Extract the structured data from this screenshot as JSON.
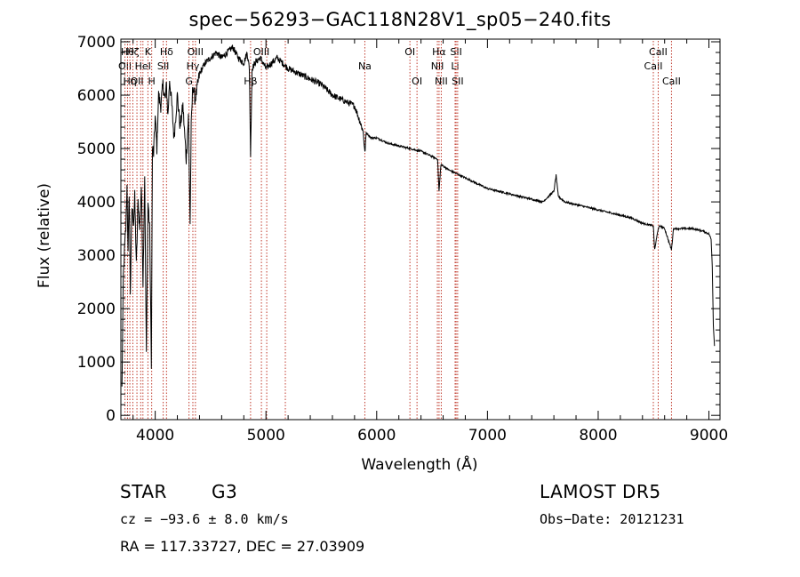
{
  "chart_data": {
    "type": "line",
    "title": "spec−56293−GAC118N28V1_sp05−240.fits",
    "xlabel": "Wavelength (Å)",
    "ylabel": "Flux (relative)",
    "xlim": [
      3690,
      9100
    ],
    "ylim": [
      -80,
      7050
    ],
    "xticks": [
      4000,
      5000,
      6000,
      7000,
      8000,
      9000
    ],
    "yticks": [
      0,
      1000,
      2000,
      3000,
      4000,
      5000,
      6000,
      7000
    ],
    "series": [
      {
        "x": [
          3700,
          3712,
          3725,
          3735,
          3745,
          3755,
          3765,
          3775,
          3790,
          3805,
          3815,
          3830,
          3845,
          3860,
          3875,
          3890,
          3905,
          3920,
          3935,
          3950,
          3965,
          3975,
          3985,
          4000,
          4015,
          4030,
          4050,
          4070,
          4090,
          4102,
          4115,
          4130,
          4150,
          4170,
          4200,
          4225,
          4250,
          4280,
          4300,
          4315,
          4325,
          4340,
          4360,
          4400,
          4450,
          4500,
          4550,
          4600,
          4650,
          4700,
          4750,
          4800,
          4830,
          4850,
          4861,
          4875,
          4900,
          4950,
          5000,
          5050,
          5100,
          5150,
          5200,
          5300,
          5400,
          5500,
          5600,
          5700,
          5800,
          5850,
          5880,
          5893,
          5905,
          5950,
          6000,
          6100,
          6200,
          6300,
          6400,
          6500,
          6550,
          6563,
          6580,
          6650,
          6700,
          6800,
          6900,
          7000,
          7100,
          7200,
          7300,
          7400,
          7500,
          7600,
          7620,
          7640,
          7700,
          7800,
          7900,
          8000,
          8100,
          8200,
          8300,
          8400,
          8498,
          8510,
          8542,
          8560,
          8600,
          8662,
          8680,
          8750,
          8850,
          8950,
          9000,
          9010,
          9020,
          9030,
          9040,
          9050
        ],
        "y": [
          500,
          2600,
          3200,
          3500,
          4300,
          3000,
          4200,
          2300,
          3900,
          3600,
          4100,
          2800,
          4000,
          3500,
          4300,
          2500,
          4500,
          1100,
          4000,
          3500,
          1000,
          5000,
          4900,
          5600,
          5000,
          6000,
          5800,
          6200,
          5900,
          6200,
          5600,
          6300,
          5800,
          5200,
          6000,
          5400,
          5800,
          4800,
          5600,
          3600,
          5400,
          6200,
          5900,
          6400,
          6600,
          6700,
          6800,
          6700,
          6800,
          6900,
          6700,
          6600,
          6800,
          6500,
          4900,
          6500,
          6600,
          6700,
          6500,
          6600,
          6700,
          6600,
          6500,
          6400,
          6300,
          6200,
          6000,
          5900,
          5800,
          5500,
          5300,
          4900,
          5300,
          5200,
          5200,
          5100,
          5050,
          5000,
          4950,
          4850,
          4800,
          4200,
          4700,
          4600,
          4550,
          4450,
          4350,
          4250,
          4200,
          4150,
          4100,
          4050,
          4000,
          4200,
          4500,
          4100,
          4000,
          3950,
          3900,
          3850,
          3800,
          3750,
          3700,
          3600,
          3550,
          3100,
          3500,
          3550,
          3500,
          3100,
          3500,
          3500,
          3500,
          3450,
          3400,
          3350,
          3300,
          2800,
          1700,
          1300
        ]
      }
    ],
    "lines": [
      {
        "w": 3727,
        "label": "OII",
        "row": 2
      },
      {
        "w": 3750,
        "label": "Hθ",
        "row": 1
      },
      {
        "w": 3771,
        "label": "Hη",
        "row": 3
      },
      {
        "w": 3798,
        "label": "Hζ",
        "row": 1
      },
      {
        "w": 3835,
        "label": "OII",
        "row": 3
      },
      {
        "w": 3869,
        "label": "",
        "row": 0
      },
      {
        "w": 3889,
        "label": "HeI",
        "row": 2
      },
      {
        "w": 3934,
        "label": "K",
        "row": 1
      },
      {
        "w": 3968,
        "label": "H",
        "row": 3
      },
      {
        "w": 4072,
        "label": "SII",
        "row": 2
      },
      {
        "w": 4102,
        "label": "Hδ",
        "row": 1
      },
      {
        "w": 4305,
        "label": "G",
        "row": 3
      },
      {
        "w": 4340,
        "label": "Hγ",
        "row": 2
      },
      {
        "w": 4363,
        "label": "OIII",
        "row": 1
      },
      {
        "w": 4861,
        "label": "Hβ",
        "row": 3
      },
      {
        "w": 4959,
        "label": "OIII",
        "row": 1
      },
      {
        "w": 5007,
        "label": "",
        "row": 0
      },
      {
        "w": 5175,
        "label": "",
        "row": 0
      },
      {
        "w": 5893,
        "label": "Na",
        "row": 2
      },
      {
        "w": 6300,
        "label": "OI",
        "row": 1
      },
      {
        "w": 6364,
        "label": "OI",
        "row": 3
      },
      {
        "w": 6548,
        "label": "NII",
        "row": 2
      },
      {
        "w": 6563,
        "label": "Hα",
        "row": 1
      },
      {
        "w": 6583,
        "label": "NII",
        "row": 3
      },
      {
        "w": 6708,
        "label": "Li",
        "row": 2
      },
      {
        "w": 6717,
        "label": "SII",
        "row": 1
      },
      {
        "w": 6731,
        "label": "SII",
        "row": 3
      },
      {
        "w": 8498,
        "label": "CaII",
        "row": 2
      },
      {
        "w": 8542,
        "label": "CaII",
        "row": 1
      },
      {
        "w": 8662,
        "label": "CaII",
        "row": 3
      }
    ],
    "grid": false,
    "legend": "none"
  },
  "info": {
    "object_class": "STAR",
    "subclass": "G3",
    "survey": "LAMOST DR5",
    "cz": "cz = −93.6 ± 8.0 km/s",
    "obs_date": "Obs−Date: 20121231",
    "coords": "RA = 117.33727, DEC =  27.03909"
  },
  "colors": {
    "line_marker": "#c0392b",
    "spectrum": "#000000",
    "axes": "#000000"
  }
}
